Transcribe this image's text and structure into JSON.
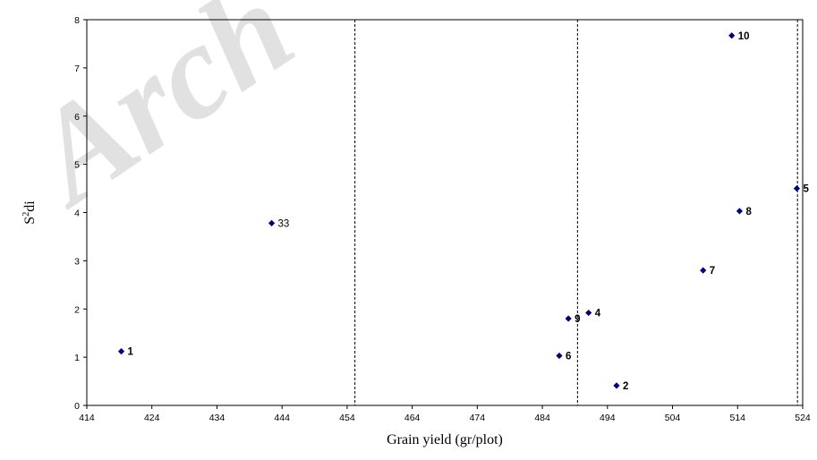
{
  "chart_data": {
    "type": "scatter",
    "title": "",
    "xlabel": "Grain yield (gr/plot)",
    "ylabel_base": "S",
    "ylabel_sup": "2",
    "ylabel_rest": "di",
    "xlim": [
      414,
      524
    ],
    "ylim": [
      0,
      8
    ],
    "x_ticks": [
      414,
      424,
      434,
      444,
      454,
      464,
      474,
      484,
      494,
      504,
      514,
      524
    ],
    "y_ticks": [
      0,
      1,
      2,
      3,
      4,
      5,
      6,
      7,
      8
    ],
    "vertical_reference_lines": [
      455.2,
      489.4,
      523.2
    ],
    "grid": false,
    "legend": "none",
    "marker_color": "#000080",
    "watermark_text": "Arch",
    "points": [
      {
        "label": "1",
        "x": 419.3,
        "y": 1.12,
        "bold": true
      },
      {
        "label": "33",
        "x": 442.4,
        "y": 3.78,
        "bold": false
      },
      {
        "label": "6",
        "x": 486.6,
        "y": 1.03,
        "bold": true
      },
      {
        "label": "9",
        "x": 488.0,
        "y": 1.8,
        "bold": true
      },
      {
        "label": "4",
        "x": 491.1,
        "y": 1.92,
        "bold": true
      },
      {
        "label": "2",
        "x": 495.4,
        "y": 0.41,
        "bold": true
      },
      {
        "label": "7",
        "x": 508.7,
        "y": 2.8,
        "bold": true
      },
      {
        "label": "10",
        "x": 513.1,
        "y": 7.67,
        "bold": true
      },
      {
        "label": "8",
        "x": 514.3,
        "y": 4.03,
        "bold": true
      },
      {
        "label": "5",
        "x": 523.1,
        "y": 4.5,
        "bold": true
      }
    ]
  }
}
